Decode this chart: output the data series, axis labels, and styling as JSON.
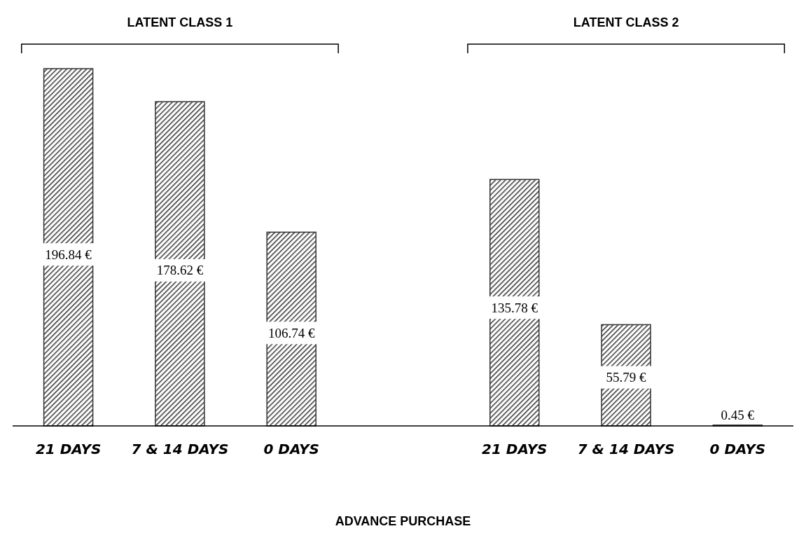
{
  "chart_data": {
    "type": "bar",
    "xlabel": "ADVANCE PURCHASE",
    "categories": [
      "21 DAYS",
      "7 & 14 DAYS",
      "0 DAYS",
      null,
      "21 DAYS",
      "7 & 14 DAYS",
      "0 DAYS"
    ],
    "values": [
      196.84,
      178.62,
      106.74,
      null,
      135.78,
      55.79,
      0.45
    ],
    "value_labels": [
      "196.84 €",
      "178.62 €",
      "106.74 €",
      null,
      "135.78 €",
      "55.79 €",
      "0.45 €"
    ],
    "color": "#333333",
    "annotations": [
      "LATENT CLASS 1",
      "LATENT CLASS 2"
    ]
  }
}
